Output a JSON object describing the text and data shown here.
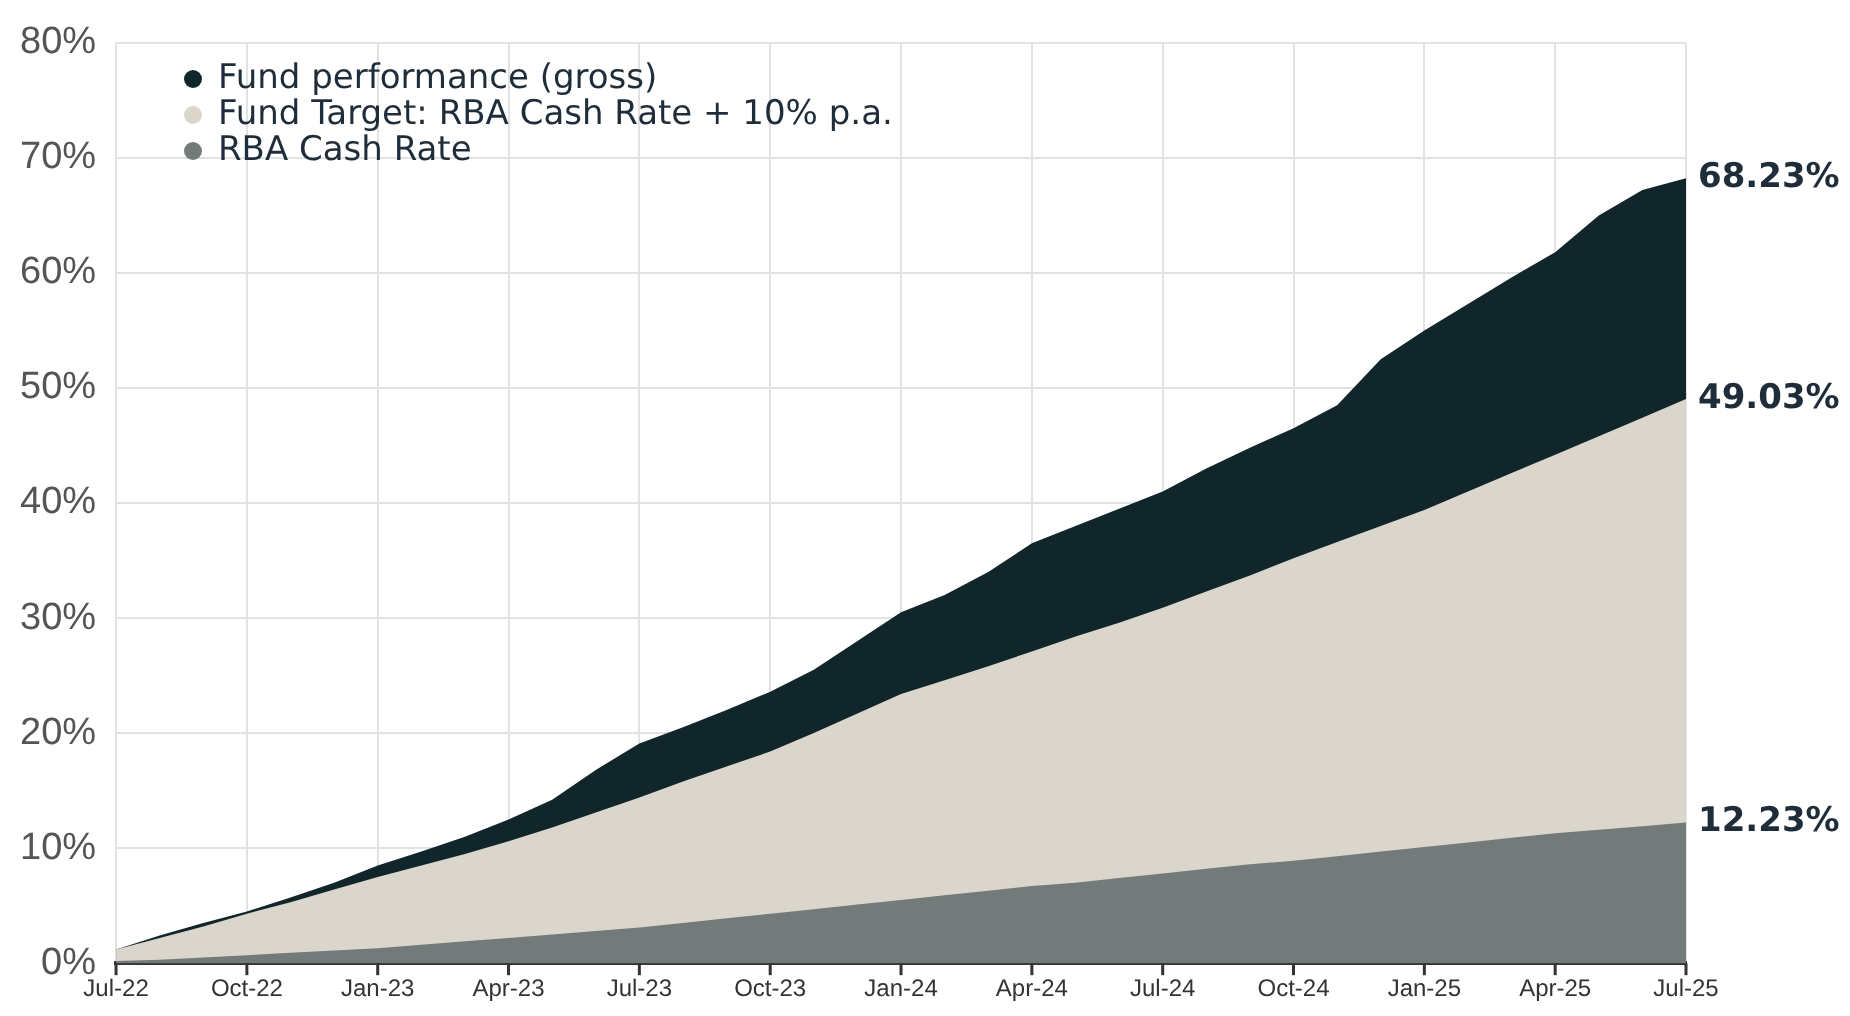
{
  "chart_data": {
    "type": "area",
    "categories": [
      "Jul-22",
      null,
      null,
      "Oct-22",
      null,
      null,
      "Jan-23",
      null,
      null,
      "Apr-23",
      null,
      null,
      "Jul-23",
      null,
      null,
      "Oct-23",
      null,
      null,
      "Jan-24",
      null,
      null,
      "Apr-24",
      null,
      null,
      "Jul-24",
      null,
      null,
      "Oct-24",
      null,
      null,
      "Jan-25",
      null,
      null,
      "Apr-25",
      null,
      null,
      "Jul-25"
    ],
    "series": [
      {
        "name": "Fund performance (gross)",
        "color": "#10262b",
        "values": [
          1.2,
          2.4,
          3.5,
          4.5,
          5.7,
          7.0,
          8.5,
          9.7,
          11.0,
          12.5,
          14.2,
          16.8,
          19.1,
          20.5,
          22.0,
          23.6,
          25.5,
          28.0,
          30.5,
          32.0,
          34.0,
          36.5,
          38.0,
          39.5,
          41.0,
          43.0,
          44.8,
          46.5,
          48.5,
          52.5,
          55.0,
          57.3,
          59.6,
          61.8,
          65.0,
          67.2,
          68.23
        ],
        "value_labels": [
          null,
          null,
          null,
          null,
          null,
          null,
          null,
          null,
          null,
          null,
          null,
          null,
          null,
          null,
          null,
          null,
          null,
          null,
          null,
          null,
          null,
          null,
          null,
          null,
          null,
          null,
          null,
          null,
          null,
          null,
          null,
          null,
          null,
          null,
          null,
          null,
          "68.23%"
        ]
      },
      {
        "name": "Fund Target: RBA Cash Rate + 10% p.a.",
        "color": "#dbd6cb",
        "values": [
          1.2,
          2.2,
          3.2,
          4.3,
          5.3,
          6.4,
          7.5,
          8.5,
          9.5,
          10.6,
          11.8,
          13.1,
          14.4,
          15.8,
          17.1,
          18.4,
          20.0,
          21.7,
          23.4,
          24.6,
          25.8,
          27.1,
          28.4,
          29.6,
          30.9,
          32.3,
          33.7,
          35.2,
          36.6,
          38.0,
          39.4,
          41.0,
          42.6,
          44.2,
          45.8,
          47.4,
          49.03
        ],
        "value_labels": [
          null,
          null,
          null,
          null,
          null,
          null,
          null,
          null,
          null,
          null,
          null,
          null,
          null,
          null,
          null,
          null,
          null,
          null,
          null,
          null,
          null,
          null,
          null,
          null,
          null,
          null,
          null,
          null,
          null,
          null,
          null,
          null,
          null,
          null,
          null,
          null,
          "49.03%"
        ]
      },
      {
        "name": "RBA Cash Rate",
        "color": "#737b7a",
        "values": [
          0.2,
          0.3,
          0.5,
          0.7,
          0.9,
          1.1,
          1.3,
          1.6,
          1.9,
          2.2,
          2.5,
          2.8,
          3.1,
          3.5,
          3.9,
          4.3,
          4.7,
          5.1,
          5.5,
          5.9,
          6.3,
          6.7,
          7.0,
          7.4,
          7.8,
          8.2,
          8.6,
          8.9,
          9.3,
          9.7,
          10.1,
          10.5,
          10.9,
          11.3,
          11.6,
          11.9,
          12.23
        ],
        "value_labels": [
          null,
          null,
          null,
          null,
          null,
          null,
          null,
          null,
          null,
          null,
          null,
          null,
          null,
          null,
          null,
          null,
          null,
          null,
          null,
          null,
          null,
          null,
          null,
          null,
          null,
          null,
          null,
          null,
          null,
          null,
          null,
          null,
          null,
          null,
          null,
          null,
          "12.23%"
        ]
      }
    ],
    "ylim": [
      0,
      80
    ],
    "yticks": [
      {
        "value": 0,
        "label": "0%"
      },
      {
        "value": 10,
        "label": "10%"
      },
      {
        "value": 20,
        "label": "20%"
      },
      {
        "value": 30,
        "label": "30%"
      },
      {
        "value": 40,
        "label": "40%"
      },
      {
        "value": 50,
        "label": "50%"
      },
      {
        "value": 60,
        "label": "60%"
      },
      {
        "value": 70,
        "label": "70%"
      },
      {
        "value": 80,
        "label": "80%"
      }
    ],
    "grid": true,
    "legend": "top left"
  }
}
